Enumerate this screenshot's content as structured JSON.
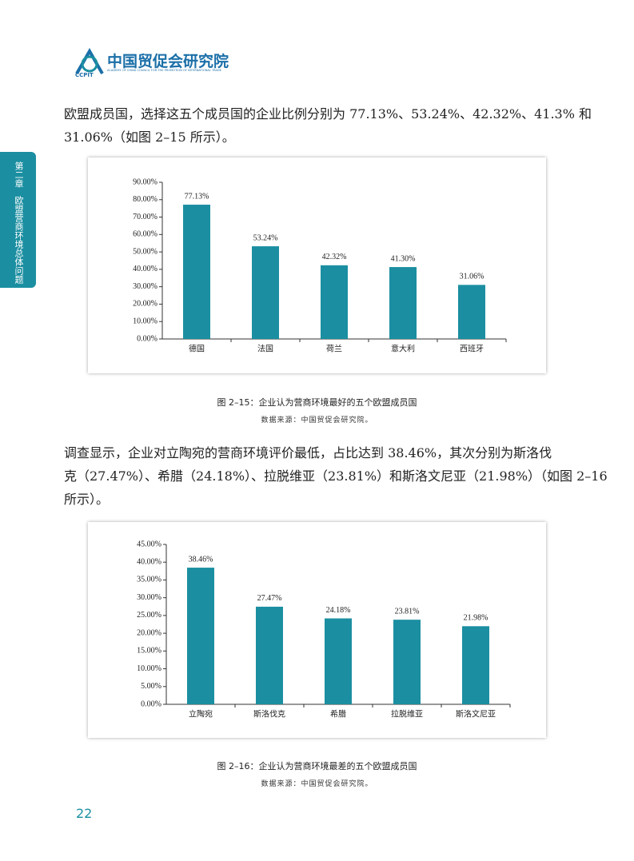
{
  "header": {
    "logo_mark": "CCPIT",
    "title": "中国贸促会研究院",
    "subtitle": "ACADEMY OF CHINA COUNCIL FOR THE PROMOTION OF INTERNATIONAL TRADE"
  },
  "side_tab": {
    "chapter": "第二章",
    "title": "欧盟营商环境总体问题"
  },
  "paragraph_1": {
    "lines": [
      "欧盟成员国，选择这五个成员国的企业比例分别为 77.13%、53.24%、42.32%、41.3% 和",
      "31.06%（如图 2–15 所示）。"
    ]
  },
  "chart_data": [
    {
      "type": "bar",
      "categories": [
        "德国",
        "法国",
        "荷兰",
        "意大利",
        "西班牙"
      ],
      "values": [
        77.13,
        53.24,
        42.32,
        41.3,
        31.06
      ],
      "value_labels": [
        "77.13%",
        "53.24%",
        "42.32%",
        "41.30%",
        "31.06%"
      ],
      "color": "#1b8fa1",
      "ylim": [
        0,
        90
      ],
      "yticks": [
        {
          "value": 0,
          "label": "0.00%"
        },
        {
          "value": 10,
          "label": "10.00%"
        },
        {
          "value": 20,
          "label": "20.00%"
        },
        {
          "value": 30,
          "label": "30.00%"
        },
        {
          "value": 40,
          "label": "40.00%"
        },
        {
          "value": 50,
          "label": "50.00%"
        },
        {
          "value": 60,
          "label": "60.00%"
        },
        {
          "value": 70,
          "label": "70.00%"
        },
        {
          "value": 80,
          "label": "80.00%"
        },
        {
          "value": 90,
          "label": "90.00%"
        }
      ],
      "grid": false,
      "caption": "图 2–15：企业认为营商环境最好的五个欧盟成员国",
      "source": "数据来源：中国贸促会研究院。"
    },
    {
      "type": "bar",
      "categories": [
        "立陶宛",
        "斯洛伐克",
        "希腊",
        "拉脱维亚",
        "斯洛文尼亚"
      ],
      "values": [
        38.46,
        27.47,
        24.18,
        23.81,
        21.98
      ],
      "value_labels": [
        "38.46%",
        "27.47%",
        "24.18%",
        "23.81%",
        "21.98%"
      ],
      "color": "#1b8fa1",
      "ylim": [
        0,
        45
      ],
      "yticks": [
        {
          "value": 0,
          "label": "0.00%"
        },
        {
          "value": 5,
          "label": "5.00%"
        },
        {
          "value": 10,
          "label": "10.00%"
        },
        {
          "value": 15,
          "label": "15.00%"
        },
        {
          "value": 20,
          "label": "20.00%"
        },
        {
          "value": 25,
          "label": "25.00%"
        },
        {
          "value": 30,
          "label": "30.00%"
        },
        {
          "value": 35,
          "label": "35.00%"
        },
        {
          "value": 40,
          "label": "40.00%"
        },
        {
          "value": 45,
          "label": "45.00%"
        }
      ],
      "grid": false,
      "caption": "图 2–16：企业认为营商环境最差的五个欧盟成员国",
      "source": "数据来源：中国贸促会研究院。"
    }
  ],
  "paragraph_2": {
    "lines": [
      "调查显示，企业对立陶宛的营商环境评价最低，占比达到 38.46%，其次分别为斯洛伐",
      "克（27.47%）、希腊（24.18%）、拉脱维亚（23.81%）和斯洛文尼亚（21.98%）（如图 2–16",
      "所示）。"
    ]
  },
  "page_number": "22"
}
